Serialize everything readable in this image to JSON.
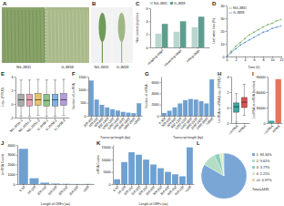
{
  "photos": [
    {
      "panel": "A",
      "labels": [
        "NG-JM31",
        "G-JM38"
      ]
    },
    {
      "panel": "B",
      "labels": [
        "NG-JM31",
        "G-JM38"
      ]
    }
  ],
  "chart_data": [
    {
      "panel": "C",
      "type": "bar",
      "categories": [
        "Heading stage",
        "Flowering stage",
        "Filling stage"
      ],
      "series": [
        {
          "name": "NG-JM31",
          "color": "#b9d7d0",
          "values": [
            2.1,
            2.4,
            3.1
          ]
        },
        {
          "name": "G-JM38",
          "color": "#5e9e8f",
          "values": [
            3.6,
            4.0,
            4.7
          ]
        }
      ],
      "ylabel": "Wax content (mg/dm²)",
      "ylim": [
        0,
        6
      ],
      "yticks": [
        0,
        2,
        4,
        6
      ],
      "legend": "top"
    },
    {
      "panel": "D",
      "type": "line",
      "x": [
        0,
        1,
        2,
        3,
        4,
        5,
        6,
        7,
        8,
        9,
        10,
        11,
        12
      ],
      "series": [
        {
          "name": "NG-JM31",
          "color": "#6aa84f",
          "marker": "circle",
          "values": [
            0,
            4,
            8,
            11,
            14,
            17,
            19,
            21,
            23,
            25,
            26,
            28,
            29
          ]
        },
        {
          "name": "G-JM38",
          "color": "#4a86c5",
          "marker": "circle",
          "values": [
            0,
            3,
            6,
            9,
            11,
            13,
            15,
            17,
            19,
            20,
            22,
            23,
            24
          ]
        }
      ],
      "xlabel": "Time (h)",
      "ylabel": "Leaf water loss (%)",
      "xlim": [
        0,
        12
      ],
      "xticks": [
        0,
        2,
        4,
        6,
        8,
        10,
        12
      ],
      "ylim": [
        0,
        40
      ],
      "yticks": [
        0,
        10,
        20,
        30,
        40
      ],
      "legend": "upper left"
    },
    {
      "panel": "E",
      "type": "box",
      "categories": [
        "NG-JM31-1",
        "NG-JM31-2",
        "NG-JM31-3",
        "G-JM38-1",
        "G-JM38-2",
        "G-JM38-3"
      ],
      "colors": [
        "#a9a9a9",
        "#e8a0b4",
        "#e8c468",
        "#8cc68c",
        "#7fb2e0",
        "#b39ddb"
      ],
      "boxes": [
        {
          "min": -1.8,
          "q1": -0.3,
          "median": 0.6,
          "q3": 1.4,
          "max": 3.5
        },
        {
          "min": -1.8,
          "q1": -0.3,
          "median": 0.6,
          "q3": 1.4,
          "max": 3.5
        },
        {
          "min": -1.7,
          "q1": -0.2,
          "median": 0.6,
          "q3": 1.5,
          "max": 3.6
        },
        {
          "min": -1.8,
          "q1": -0.3,
          "median": 0.5,
          "q3": 1.4,
          "max": 3.5
        },
        {
          "min": -1.8,
          "q1": -0.3,
          "median": 0.6,
          "q3": 1.4,
          "max": 3.5
        },
        {
          "min": -1.7,
          "q1": -0.2,
          "median": 0.6,
          "q3": 1.5,
          "max": 3.6
        }
      ],
      "ylabel": "Log₁₀ (FPKM)",
      "ylim": [
        -2,
        4
      ],
      "yticks": [
        -2,
        0,
        2,
        4
      ]
    },
    {
      "panel": "F",
      "type": "bar",
      "categories": [
        "200-400",
        "400-600",
        "600-800",
        "800-1000",
        "1000-1200",
        "1200-1400",
        "1400-1600",
        "1600-1800",
        "1800-2000",
        ">2000"
      ],
      "values": [
        1350,
        620,
        420,
        320,
        250,
        200,
        150,
        120,
        100,
        480
      ],
      "color": "#6fa0d0",
      "xlabel": "Transcript length (bp)",
      "ylabel": "Number of LncRNA",
      "ylim": [
        0,
        1500
      ],
      "yticks": [
        0,
        500,
        1000,
        1500
      ]
    },
    {
      "panel": "G",
      "type": "bar",
      "categories": [
        "0-300",
        "300-600",
        "600-900",
        "900-1200",
        "1200-1500",
        "1500-1800",
        "1800-2100",
        "2100-2400",
        "2400-3000",
        ">3000"
      ],
      "values": [
        500,
        900,
        1500,
        2200,
        2800,
        3000,
        2900,
        2600,
        2200,
        6500
      ],
      "color": "#6fa0d0",
      "xlabel": "Transcript length (bp)",
      "ylabel": "Number of mRNA",
      "ylim": [
        0,
        7000
      ],
      "yticks": [
        0,
        2000,
        4000,
        6000
      ]
    },
    {
      "panel": "H",
      "type": "box",
      "categories": [
        "LncRNA",
        "mRNA"
      ],
      "colors": [
        "#3aa7a0",
        "#d9534f"
      ],
      "boxes": [
        {
          "min": -1.9,
          "q1": -0.6,
          "median": 0.1,
          "q3": 0.6,
          "max": 1.8
        },
        {
          "min": -1.0,
          "q1": 0.0,
          "median": 0.7,
          "q3": 1.3,
          "max": 3.0
        }
      ],
      "ylabel": "LncRNA vs mRNA (Log₁₀ (FPKM))",
      "ylim": [
        -2,
        4
      ],
      "yticks": [
        -2,
        0,
        2,
        4
      ]
    },
    {
      "panel": "I",
      "type": "bar",
      "categories": [
        "LncRNA",
        "mRNA"
      ],
      "values": [
        4485,
        85000
      ],
      "colors": [
        "#3aa7a0",
        "#e8735a"
      ],
      "ylabel": "LncRNA vs mRNA (number)",
      "ylim": [
        0,
        90000
      ],
      "yticks": [
        0,
        30000,
        60000,
        90000
      ]
    },
    {
      "panel": "J",
      "type": "bar",
      "categories": [
        "0-50",
        "50-100",
        "100-150",
        "150-200",
        "200-250",
        "250-300",
        ">300"
      ],
      "values": [
        3600,
        600,
        150,
        60,
        30,
        15,
        20
      ],
      "color": "#6fa0d0",
      "xlabel": "Length of ORFs (aa)",
      "ylabel": "LncRNA Counts",
      "ylim": [
        0,
        4000
      ],
      "yticks": [
        0,
        1000,
        2000,
        3000,
        4000
      ]
    },
    {
      "panel": "K",
      "type": "bar",
      "categories": [
        "0-50",
        "50-100",
        "100-150",
        "150-200",
        "200-250",
        "250-300",
        "300-350",
        "350-400",
        "400-450",
        "450-500",
        ">500"
      ],
      "values": [
        2000,
        9000,
        13000,
        12000,
        10000,
        8000,
        6500,
        5000,
        4000,
        3200,
        15000
      ],
      "color": "#6fa0d0",
      "xlabel": "Length of ORFs (aa)",
      "ylabel": "mRNA Counts",
      "ylim": [
        0,
        16000
      ],
      "yticks": [
        0,
        5000,
        10000,
        15000
      ]
    },
    {
      "panel": "L",
      "type": "pie",
      "categories": [
        "1: 83.34%",
        "2: 9.61%",
        "3: 3.77%",
        "4: 2.21%",
        "≥5: 0.97%"
      ],
      "values": [
        83.34,
        9.61,
        3.77,
        2.21,
        0.97
      ],
      "colors": [
        "#7aa6d6",
        "#b5dcc4",
        "#8ccfc0",
        "#d6ecc8",
        "#e8d5a8"
      ],
      "title": "Total=4485"
    }
  ]
}
